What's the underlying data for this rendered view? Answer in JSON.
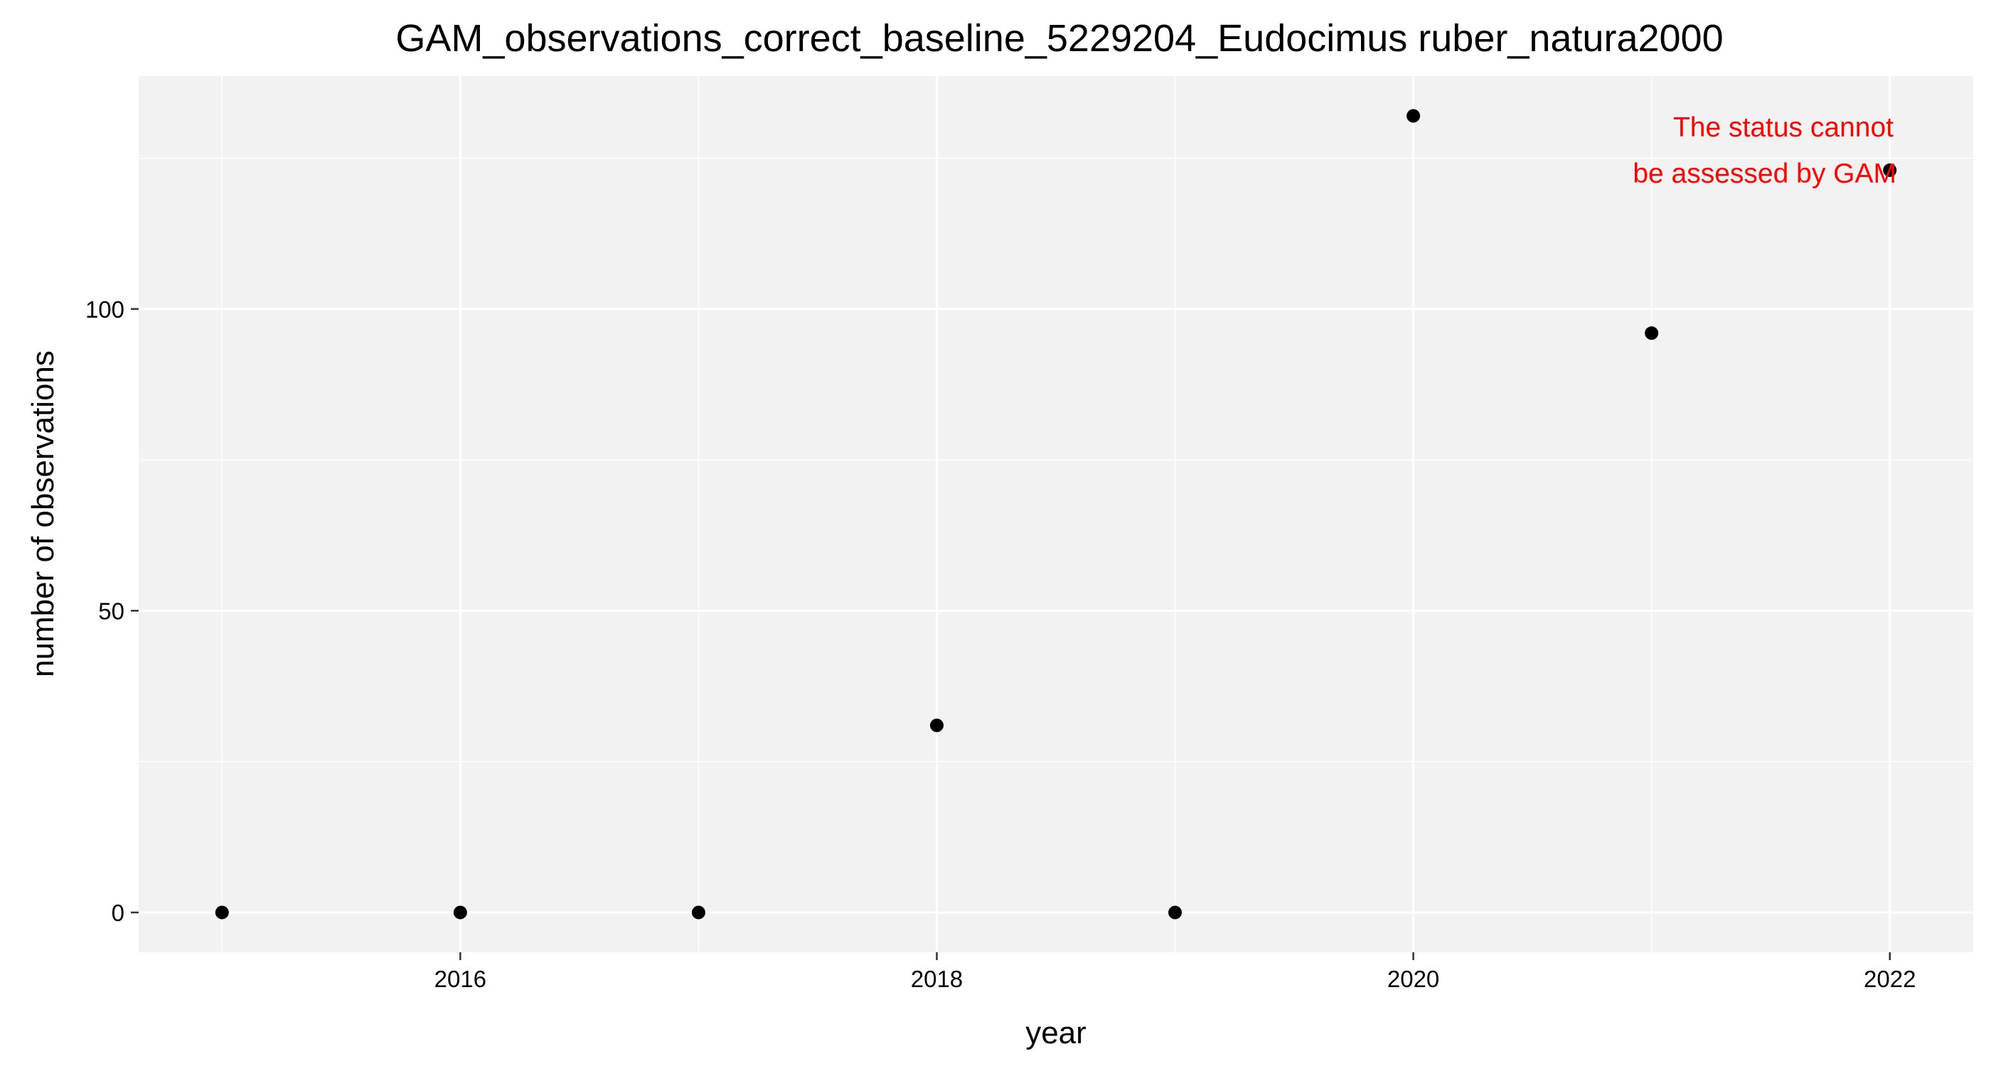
{
  "chart_data": {
    "type": "scatter",
    "title": "GAM_observations_correct_baseline_5229204_Eudocimus ruber_natura2000",
    "xlabel": "year",
    "ylabel": "number of observations",
    "x": [
      2015,
      2016,
      2017,
      2018,
      2019,
      2020,
      2021,
      2022
    ],
    "y": [
      0,
      0,
      0,
      31,
      0,
      132,
      96,
      123
    ],
    "xlim": [
      2014.65,
      2022.35
    ],
    "ylim": [
      -6.6,
      138.6
    ],
    "x_ticks": [
      2016,
      2018,
      2020,
      2022
    ],
    "x_minor_ticks": [
      2015,
      2017,
      2019,
      2021
    ],
    "y_ticks": [
      0,
      50,
      100
    ],
    "y_minor_ticks": [
      25,
      75,
      125
    ],
    "grid": true,
    "point_color": "#000000",
    "panel_background": "#f2f2f2",
    "grid_color": "#ffffff",
    "annotation": {
      "lines": [
        "The status cannot",
        "be assessed by GAM"
      ],
      "color": "#ff0000",
      "placement": "top-right"
    }
  }
}
